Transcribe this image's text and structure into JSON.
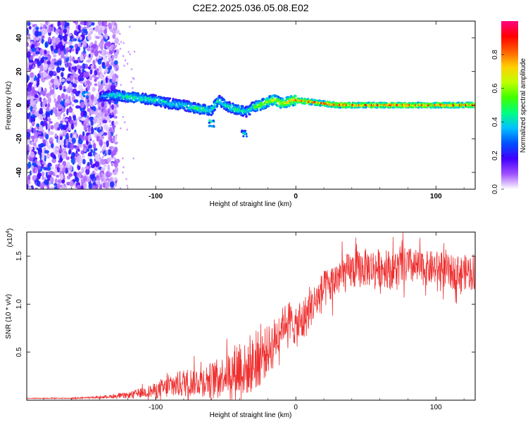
{
  "title": "C2E2.2025.036.05.08.E02",
  "chart_data": [
    {
      "type": "heatmap",
      "title": "C2E2.2025.036.05.08.E02",
      "xlabel": "Height of straight line (km)",
      "ylabel": "Frequency (Hz)",
      "xlim": [
        -192,
        128
      ],
      "ylim": [
        -50,
        50
      ],
      "x_ticks": [
        -100,
        0,
        100
      ],
      "y_ticks": [
        -40,
        -20,
        0,
        20,
        40
      ],
      "x_tick_labels": [
        "-100",
        "0",
        "100"
      ],
      "y_tick_labels": [
        "-40",
        "-20",
        "0",
        "20",
        "40"
      ],
      "colorbar": {
        "label": "Normalized spectral amplitude",
        "range": [
          0,
          1
        ],
        "ticks": [
          0.0,
          0.2,
          0.4,
          0.6,
          0.8
        ],
        "tick_labels": [
          "0.0",
          "0.2",
          "0.4",
          "0.6",
          "0.8"
        ],
        "colors": [
          "#ffffff",
          "#a050ff",
          "#4000ff",
          "#0050ff",
          "#00c0ff",
          "#00ff80",
          "#40ff00",
          "#c0ff00",
          "#ffd000",
          "#ff6000",
          "#ff0000",
          "#ff0080"
        ]
      },
      "noise_region": {
        "x_range": [
          -192,
          -135
        ],
        "description_level": 0.2
      },
      "ridge": {
        "x": [
          -140,
          -130,
          -120,
          -110,
          -100,
          -90,
          -80,
          -70,
          -60,
          -55,
          -50,
          -45,
          -40,
          -35,
          -30,
          -25,
          -20,
          -15,
          -10,
          -5,
          0,
          10,
          20,
          30,
          40,
          60,
          80,
          100,
          128
        ],
        "freq": [
          5,
          6,
          5,
          4,
          3,
          1,
          0,
          -2,
          -3,
          3,
          0,
          -2,
          -3,
          -4,
          -1,
          0,
          2,
          3,
          1,
          2,
          3,
          2,
          1,
          0,
          0,
          0,
          0,
          0,
          0
        ],
        "amplitude": [
          0.3,
          0.45,
          0.5,
          0.5,
          0.45,
          0.45,
          0.45,
          0.5,
          0.5,
          0.5,
          0.45,
          0.5,
          0.5,
          0.45,
          0.55,
          0.65,
          0.65,
          0.7,
          0.7,
          0.75,
          0.8,
          0.85,
          0.85,
          0.85,
          0.85,
          0.85,
          0.85,
          0.85,
          0.85
        ]
      },
      "spots": [
        {
          "x": -60,
          "freq": -11,
          "amplitude": 0.4
        },
        {
          "x": -37,
          "freq": -17,
          "amplitude": 0.4
        },
        {
          "x": -150,
          "freq": 7,
          "amplitude": 0.35
        }
      ]
    },
    {
      "type": "line",
      "xlabel": "Height of straight line (km)",
      "ylabel": "SNR (10 * v/v)",
      "y_multiplier": "(x10",
      "y_multiplier_exp": "4",
      "xlim": [
        -192,
        128
      ],
      "ylim": [
        0,
        1.75
      ],
      "x_ticks": [
        -100,
        0,
        100
      ],
      "y_ticks": [
        0.5,
        1.0,
        1.5
      ],
      "x_tick_labels": [
        "-100",
        "0",
        "100"
      ],
      "y_tick_labels": [
        "0.5",
        "1.0",
        "1.5"
      ],
      "line_color": "#ef3030",
      "series": [
        {
          "name": "SNR",
          "x": [
            -192,
            -160,
            -140,
            -120,
            -110,
            -100,
            -90,
            -80,
            -70,
            -60,
            -50,
            -45,
            -40,
            -35,
            -30,
            -25,
            -20,
            -15,
            -10,
            -5,
            0,
            5,
            10,
            15,
            20,
            25,
            30,
            40,
            50,
            60,
            70,
            80,
            90,
            100,
            110,
            120,
            128
          ],
          "y": [
            0.02,
            0.02,
            0.03,
            0.05,
            0.08,
            0.1,
            0.14,
            0.18,
            0.2,
            0.22,
            0.28,
            0.3,
            0.35,
            0.3,
            0.38,
            0.45,
            0.52,
            0.62,
            0.78,
            0.85,
            0.75,
            0.82,
            0.95,
            1.05,
            1.15,
            1.2,
            1.28,
            1.35,
            1.38,
            1.38,
            1.36,
            1.4,
            1.37,
            1.38,
            1.33,
            1.33,
            1.35
          ],
          "spread": [
            0.003,
            0.005,
            0.01,
            0.03,
            0.05,
            0.08,
            0.12,
            0.15,
            0.15,
            0.18,
            0.2,
            0.25,
            0.35,
            0.25,
            0.3,
            0.3,
            0.25,
            0.25,
            0.18,
            0.2,
            0.2,
            0.25,
            0.2,
            0.2,
            0.2,
            0.2,
            0.2,
            0.2,
            0.2,
            0.2,
            0.2,
            0.2,
            0.18,
            0.18,
            0.18,
            0.18,
            0.2
          ]
        }
      ]
    }
  ]
}
